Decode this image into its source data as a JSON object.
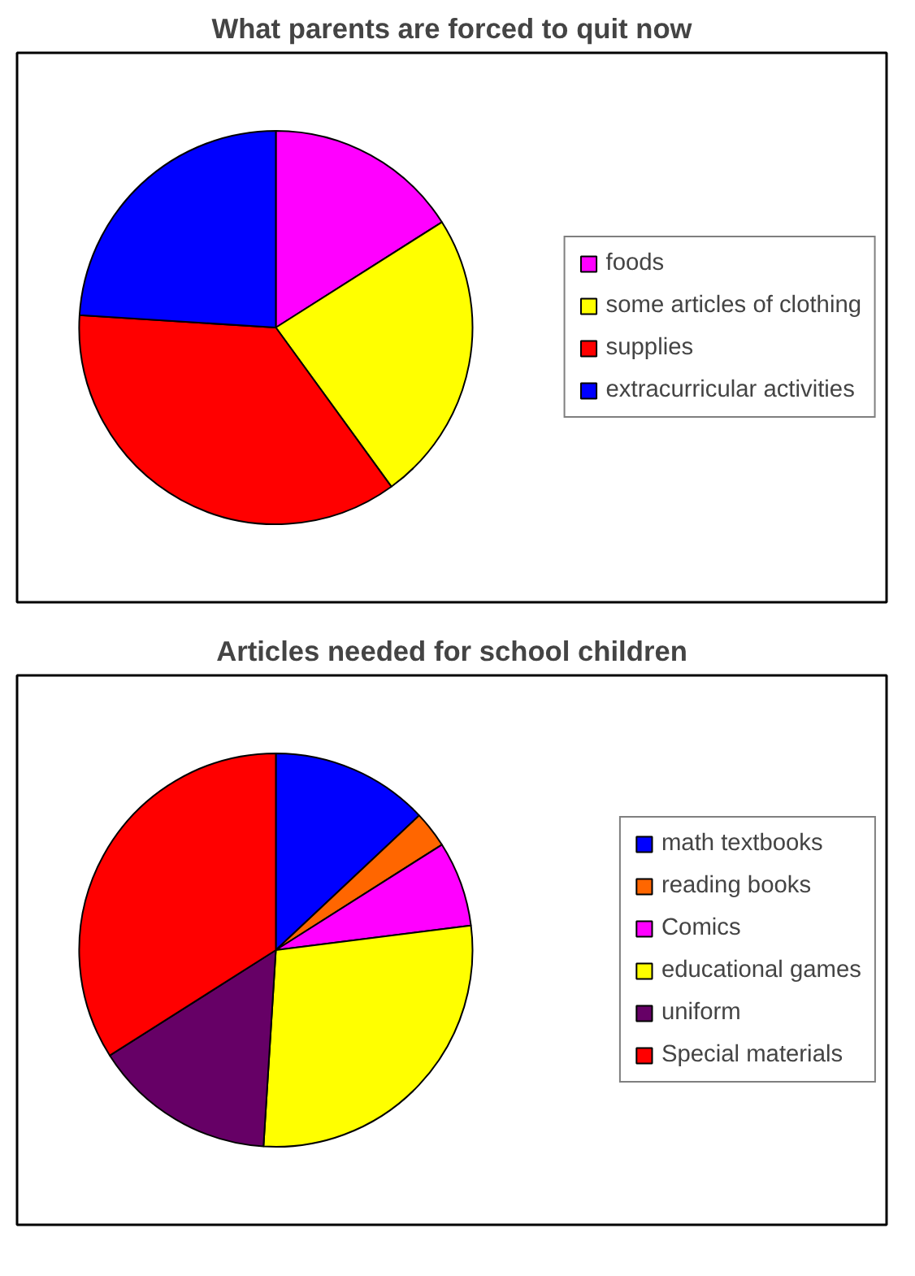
{
  "chart_data": [
    {
      "type": "pie",
      "title": "What parents are forced to quit now",
      "categories": [
        "foods",
        "some articles of clothing",
        "supplies",
        "extracurricular activities"
      ],
      "values": [
        16,
        24,
        36,
        24
      ],
      "colors": [
        "#ff00ff",
        "#ffff00",
        "#ff0000",
        "#0000ff"
      ],
      "legend": "right"
    },
    {
      "type": "pie",
      "title": "Articles needed for school children",
      "categories": [
        "math textbooks",
        "reading books",
        "Comics",
        "educational games",
        "uniform",
        "Special materials"
      ],
      "values": [
        13,
        3,
        7,
        28,
        15,
        34
      ],
      "colors": [
        "#0000ff",
        "#ff6600",
        "#ff00ff",
        "#ffff00",
        "#660066",
        "#ff0000"
      ],
      "legend": "right"
    }
  ]
}
